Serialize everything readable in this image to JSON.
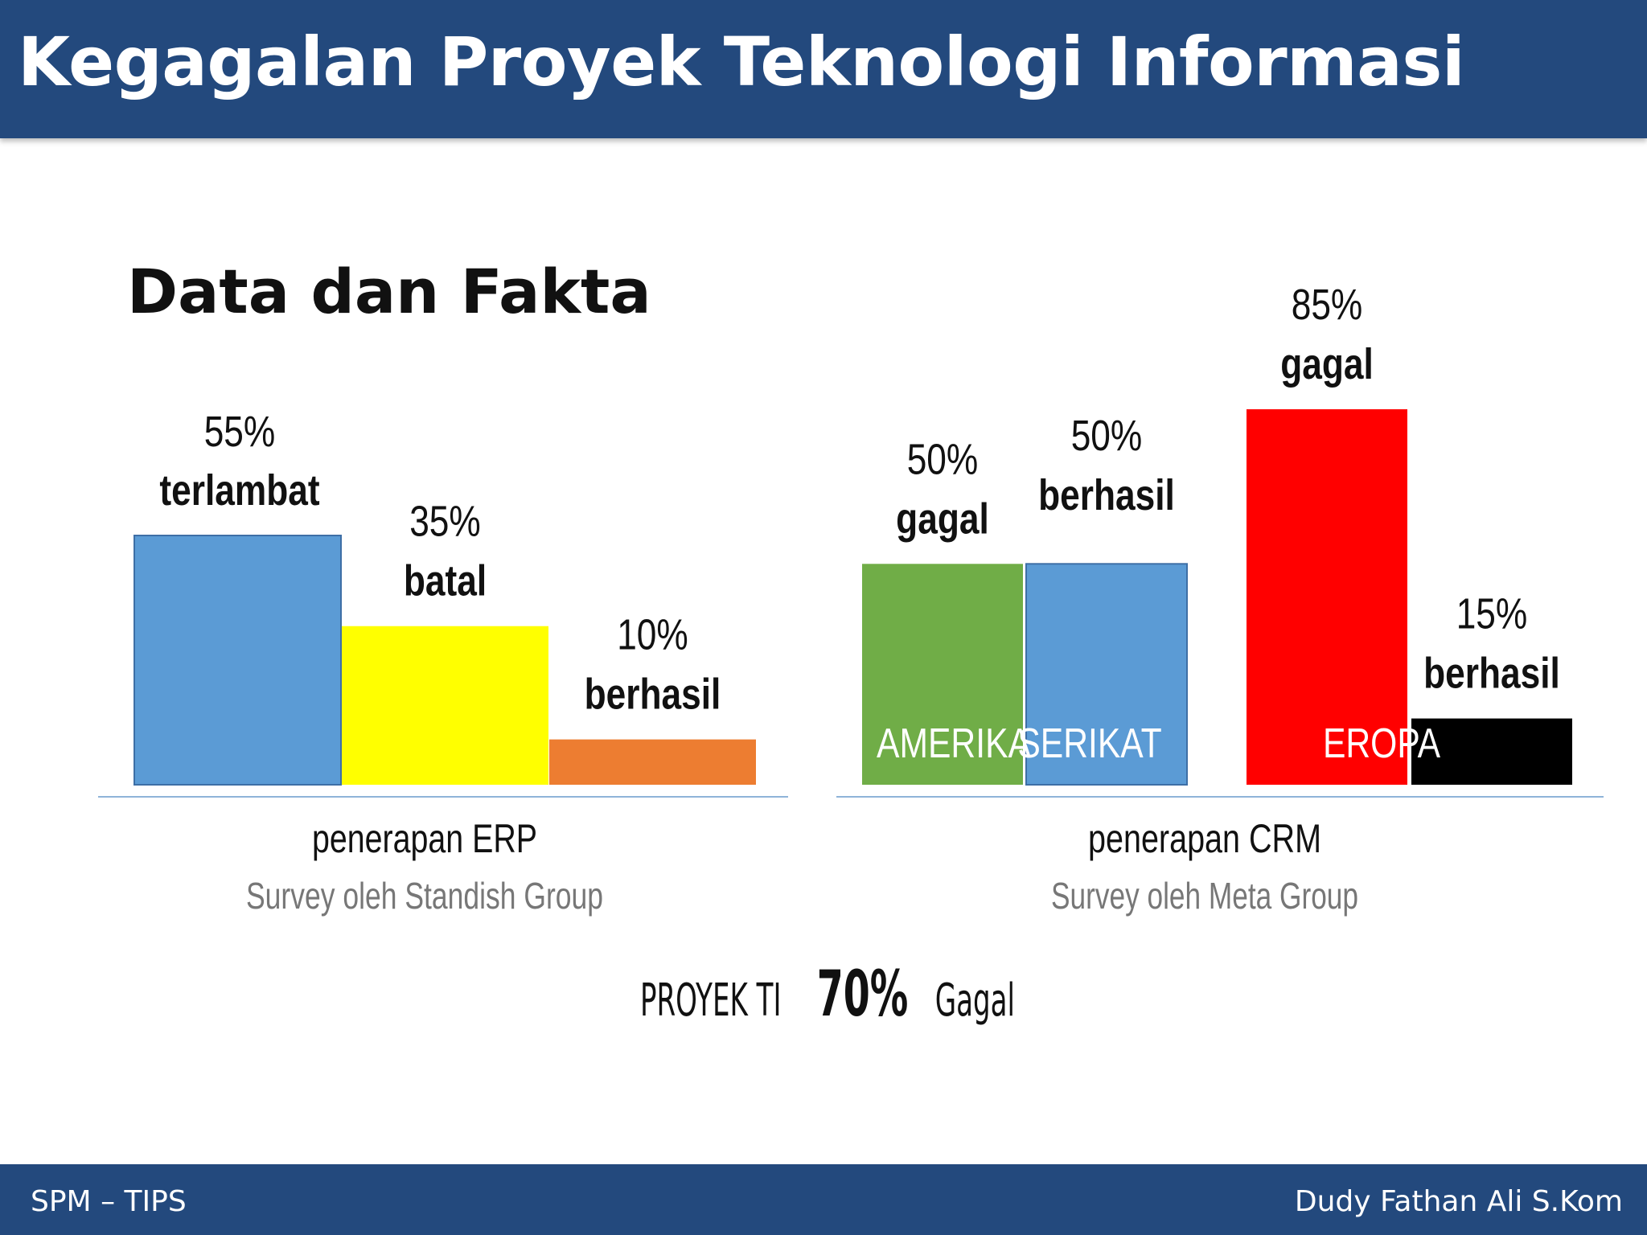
{
  "slide": {
    "title": "Kegagalan Proyek Teknologi Informasi",
    "section_title": "Data dan Fakta",
    "conclusion": {
      "prefix": "PROYEK TI",
      "highlight": "70%",
      "suffix": "Gagal"
    },
    "footer": {
      "left": "SPM – TIPS",
      "right": "Dudy Fathan Ali S.Kom"
    }
  },
  "chart_data": [
    {
      "type": "bar",
      "title": "penerapan ERP",
      "subtitle": "Survey oleh Standish Group",
      "ylim": [
        0,
        60
      ],
      "bars": [
        {
          "category": "terlambat",
          "percent_label": "55%",
          "value": 55,
          "color": "#5b9bd5"
        },
        {
          "category": "batal",
          "percent_label": "35%",
          "value": 35,
          "color": "#ffff00"
        },
        {
          "category": "berhasil",
          "percent_label": "10%",
          "value": 10,
          "color": "#ed7d31"
        }
      ]
    },
    {
      "type": "bar",
      "title": "penerapan CRM",
      "subtitle": "Survey oleh Meta Group",
      "ylim": [
        0,
        100
      ],
      "groups": [
        {
          "region": "AMERIKA SERIKAT",
          "region_parts": [
            "AMERIKA",
            "SERIKAT"
          ],
          "bars": [
            {
              "category": "gagal",
              "percent_label": "50%",
              "value": 50,
              "color": "#70ad47"
            },
            {
              "category": "berhasil",
              "percent_label": "50%",
              "value": 50,
              "color": "#5b9bd5"
            }
          ]
        },
        {
          "region": "EROPA",
          "region_parts": [
            "EROPA"
          ],
          "bars": [
            {
              "category": "gagal",
              "percent_label": "85%",
              "value": 85,
              "color": "#ff0000"
            },
            {
              "category": "berhasil",
              "percent_label": "15%",
              "value": 15,
              "color": "#000000"
            }
          ]
        }
      ]
    }
  ]
}
